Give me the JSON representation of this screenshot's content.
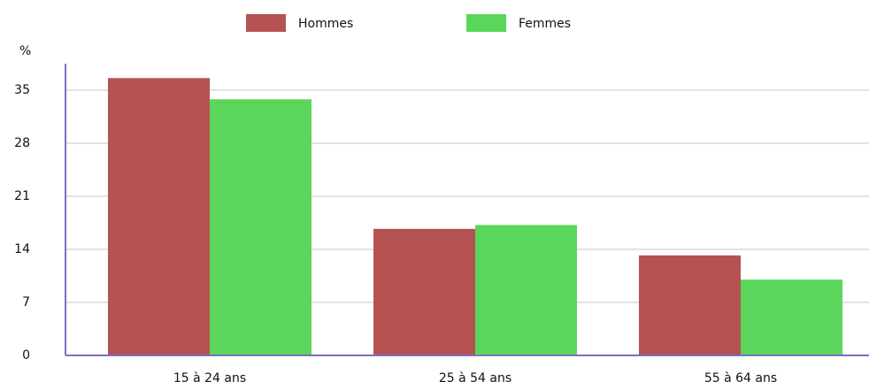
{
  "chart_data": {
    "type": "bar",
    "y_label": "%",
    "categories": [
      "15 à 24 ans",
      "25 à 54 ans",
      "55 à 64 ans"
    ],
    "series": [
      {
        "name": "Hommes",
        "color": "#b55252",
        "values": [
          36.6,
          16.7,
          13.2
        ]
      },
      {
        "name": "Femmes",
        "color": "#5ad65a",
        "values": [
          33.8,
          17.2,
          10.0
        ]
      }
    ],
    "ylim": [
      0,
      38.5
    ],
    "yticks": [
      0,
      7,
      14,
      21,
      28,
      35
    ],
    "grid": true,
    "legend": "top"
  }
}
